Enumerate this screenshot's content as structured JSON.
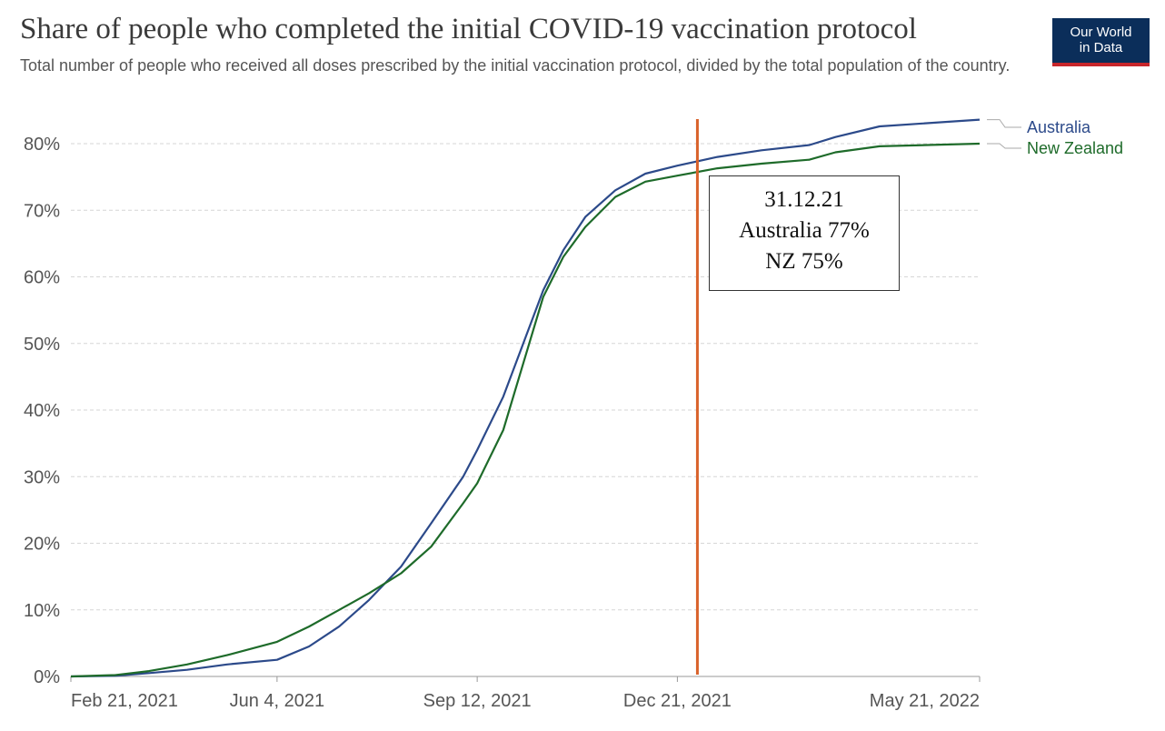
{
  "header": {
    "title": "Share of people who completed the initial COVID-19 vaccination protocol",
    "subtitle": "Total number of people who received all doses prescribed by the initial vaccination protocol, divided by the total population of the country."
  },
  "logo": {
    "line1": "Our World",
    "line2": "in Data",
    "bg_color": "#0b2e5a",
    "accent_color": "#c8262b"
  },
  "annotation": {
    "date": "31.12.21",
    "line_australia": "Australia 77%",
    "line_nz": "NZ 75%",
    "marker_date": "2021-12-31",
    "marker_color": "#d9622b"
  },
  "chart_data": {
    "type": "line",
    "title": "Share of people who completed the initial COVID-19 vaccination protocol",
    "subtitle": "Total number of people who received all doses prescribed by the initial vaccination protocol, divided by the total population of the country.",
    "xlabel": "",
    "ylabel": "",
    "x_range": [
      "2021-02-21",
      "2022-05-21"
    ],
    "ylim": [
      0,
      80
    ],
    "x_ticks": [
      {
        "date": "2021-02-21",
        "label": "Feb 21, 2021"
      },
      {
        "date": "2021-06-04",
        "label": "Jun 4, 2021"
      },
      {
        "date": "2021-09-12",
        "label": "Sep 12, 2021"
      },
      {
        "date": "2021-12-21",
        "label": "Dec 21, 2021"
      },
      {
        "date": "2022-05-21",
        "label": "May 21, 2022"
      }
    ],
    "y_ticks": [
      {
        "value": 0,
        "label": "0%"
      },
      {
        "value": 10,
        "label": "10%"
      },
      {
        "value": 20,
        "label": "20%"
      },
      {
        "value": 30,
        "label": "30%"
      },
      {
        "value": 40,
        "label": "40%"
      },
      {
        "value": 50,
        "label": "50%"
      },
      {
        "value": 60,
        "label": "60%"
      },
      {
        "value": 70,
        "label": "70%"
      },
      {
        "value": 80,
        "label": "80%"
      }
    ],
    "grid": true,
    "legend": "right",
    "series": [
      {
        "name": "Australia",
        "color": "#2c4a8a",
        "points": [
          [
            "2021-02-21",
            0
          ],
          [
            "2021-03-15",
            0.1
          ],
          [
            "2021-04-01",
            0.5
          ],
          [
            "2021-04-20",
            1.0
          ],
          [
            "2021-05-10",
            1.8
          ],
          [
            "2021-06-04",
            2.5
          ],
          [
            "2021-06-20",
            4.5
          ],
          [
            "2021-07-05",
            7.5
          ],
          [
            "2021-07-20",
            11.5
          ],
          [
            "2021-08-05",
            16.5
          ],
          [
            "2021-08-20",
            23.0
          ],
          [
            "2021-09-05",
            30.0
          ],
          [
            "2021-09-12",
            34.0
          ],
          [
            "2021-09-25",
            42.0
          ],
          [
            "2021-10-05",
            50.0
          ],
          [
            "2021-10-15",
            58.0
          ],
          [
            "2021-10-25",
            64.0
          ],
          [
            "2021-11-05",
            69.0
          ],
          [
            "2021-11-20",
            73.0
          ],
          [
            "2021-12-05",
            75.5
          ],
          [
            "2021-12-21",
            76.7
          ],
          [
            "2022-01-10",
            78.0
          ],
          [
            "2022-02-01",
            79.0
          ],
          [
            "2022-02-25",
            79.8
          ],
          [
            "2022-03-10",
            81.0
          ],
          [
            "2022-04-01",
            82.6
          ],
          [
            "2022-05-21",
            83.6
          ]
        ]
      },
      {
        "name": "New Zealand",
        "color": "#1e6b2a",
        "points": [
          [
            "2021-02-21",
            0
          ],
          [
            "2021-03-15",
            0.2
          ],
          [
            "2021-04-01",
            0.8
          ],
          [
            "2021-04-20",
            1.8
          ],
          [
            "2021-05-10",
            3.2
          ],
          [
            "2021-06-04",
            5.2
          ],
          [
            "2021-06-20",
            7.5
          ],
          [
            "2021-07-05",
            10.0
          ],
          [
            "2021-07-20",
            12.5
          ],
          [
            "2021-08-05",
            15.5
          ],
          [
            "2021-08-20",
            19.5
          ],
          [
            "2021-09-05",
            26.0
          ],
          [
            "2021-09-12",
            29.0
          ],
          [
            "2021-09-25",
            37.0
          ],
          [
            "2021-10-05",
            47.0
          ],
          [
            "2021-10-15",
            57.0
          ],
          [
            "2021-10-25",
            63.0
          ],
          [
            "2021-11-05",
            67.5
          ],
          [
            "2021-11-20",
            72.0
          ],
          [
            "2021-12-05",
            74.3
          ],
          [
            "2021-12-21",
            75.2
          ],
          [
            "2022-01-10",
            76.3
          ],
          [
            "2022-02-01",
            77.0
          ],
          [
            "2022-02-25",
            77.6
          ],
          [
            "2022-03-10",
            78.7
          ],
          [
            "2022-04-01",
            79.6
          ],
          [
            "2022-05-21",
            80.0
          ]
        ]
      }
    ]
  }
}
